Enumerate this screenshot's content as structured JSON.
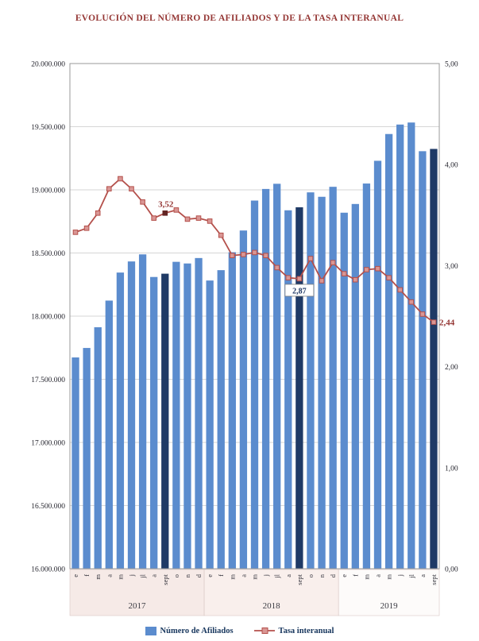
{
  "chart_data": {
    "type": "combo-bar-line",
    "title": "EVOLUCIÓN DEL NÚMERO DE AFILIADOS Y DE LA TASA INTERANUAL",
    "legend_position": "bottom",
    "grid": "horizontal",
    "x_groups": [
      {
        "year": "2017",
        "band_color": "#f6eae7",
        "months": [
          "e",
          "f",
          "m",
          "a",
          "m",
          "j",
          "jl",
          "a",
          "sept",
          "o",
          "n",
          "d"
        ]
      },
      {
        "year": "2018",
        "band_color": "#f9efec",
        "months": [
          "e",
          "f",
          "m",
          "a",
          "m",
          "j",
          "jl",
          "a",
          "sept",
          "o",
          "n",
          "d"
        ]
      },
      {
        "year": "2019",
        "band_color": "#fdfbfa",
        "months": [
          "e",
          "f",
          "m",
          "a",
          "m",
          "j",
          "jl",
          "a",
          "sept"
        ]
      }
    ],
    "left_axis": {
      "min": 16000000,
      "max": 20000000,
      "step": 500000,
      "tick_labels": [
        "16.000.000",
        "16.500.000",
        "17.000.000",
        "17.500.000",
        "18.000.000",
        "18.500.000",
        "19.000.000",
        "19.500.000",
        "20.000.000"
      ]
    },
    "right_axis": {
      "min": 0,
      "max": 5,
      "step": 1,
      "tick_labels": [
        "0,00",
        "1,00",
        "2,00",
        "3,00",
        "4,00",
        "5,00"
      ]
    },
    "series": [
      {
        "name": "Número de Afiliados",
        "type": "bar",
        "axis": "left",
        "color": "#5b8cce",
        "highlight_color": "#1f3a66",
        "highlight_indices": [
          8,
          20,
          32
        ],
        "values": [
          17673000,
          17748000,
          17912000,
          18123000,
          18345000,
          18433000,
          18489000,
          18310000,
          18336000,
          18430000,
          18417000,
          18460000,
          18282000,
          18364000,
          18506000,
          18678000,
          18915000,
          19007000,
          19048000,
          18838000,
          18862000,
          18980000,
          18945000,
          19024000,
          18819000,
          18888000,
          19050000,
          19230000,
          19442000,
          19517000,
          19533000,
          19306000,
          19324000
        ]
      },
      {
        "name": "Tasa interanual",
        "type": "line",
        "axis": "right",
        "color": "#b4504b",
        "marker_fill": "#d99694",
        "highlight_color": "#632523",
        "highlight_indices": [
          8
        ],
        "values": [
          3.33,
          3.37,
          3.52,
          3.76,
          3.86,
          3.76,
          3.63,
          3.47,
          3.52,
          3.55,
          3.46,
          3.47,
          3.44,
          3.3,
          3.1,
          3.11,
          3.13,
          3.1,
          2.98,
          2.88,
          2.87,
          3.07,
          2.85,
          3.03,
          2.92,
          2.86,
          2.96,
          2.97,
          2.88,
          2.76,
          2.64,
          2.52,
          2.44
        ]
      }
    ],
    "annotations": [
      {
        "text": "3,52",
        "index": 8,
        "placement": "above",
        "style": "red"
      },
      {
        "text": "2,87",
        "index": 20,
        "placement": "below-boxed",
        "style": "navy"
      },
      {
        "text": "2,44",
        "index": 32,
        "placement": "right",
        "style": "red"
      }
    ]
  }
}
